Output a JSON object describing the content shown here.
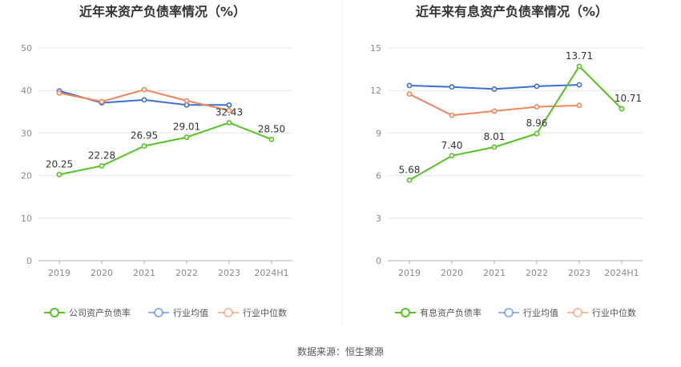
{
  "chart_data": [
    {
      "type": "line",
      "title": "近年来资产负债率情况（%）",
      "categories": [
        "2019",
        "2020",
        "2021",
        "2022",
        "2023",
        "2024H1"
      ],
      "ylim": [
        0,
        50
      ],
      "yticks": [
        0,
        10,
        20,
        30,
        40,
        50
      ],
      "legend_position": "bottom",
      "series": [
        {
          "name": "公司资产负债率",
          "color": "#52c41a",
          "values": [
            20.25,
            22.28,
            26.95,
            29.01,
            32.43,
            28.5
          ],
          "labels": [
            "20.25",
            "22.28",
            "26.95",
            "29.01",
            "32.43",
            "28.50"
          ]
        },
        {
          "name": "行业均值",
          "color": "#3a6fd8",
          "values": [
            39.9,
            37.1,
            37.8,
            36.6,
            36.6,
            null
          ]
        },
        {
          "name": "行业中位数",
          "color": "#f0855a",
          "values": [
            39.4,
            37.4,
            40.2,
            37.6,
            35.3,
            null
          ]
        }
      ]
    },
    {
      "type": "line",
      "title": "近年来有息资产负债率情况（%）",
      "categories": [
        "2019",
        "2020",
        "2021",
        "2022",
        "2023",
        "2024H1"
      ],
      "ylim": [
        0,
        15
      ],
      "yticks": [
        0,
        3,
        6,
        9,
        12,
        15
      ],
      "legend_position": "bottom",
      "series": [
        {
          "name": "有息资产负债率",
          "color": "#52c41a",
          "values": [
            5.68,
            7.4,
            8.01,
            8.96,
            13.71,
            10.71
          ],
          "labels": [
            "5.68",
            "7.40",
            "8.01",
            "8.96",
            "13.71",
            "10.71"
          ]
        },
        {
          "name": "行业均值",
          "color": "#3a6fd8",
          "values": [
            12.35,
            12.25,
            12.1,
            12.3,
            12.4,
            null
          ]
        },
        {
          "name": "行业中位数",
          "color": "#f0855a",
          "values": [
            11.75,
            10.25,
            10.55,
            10.85,
            10.95,
            null
          ]
        }
      ]
    }
  ],
  "footer": {
    "source": "数据来源：恒生聚源"
  }
}
